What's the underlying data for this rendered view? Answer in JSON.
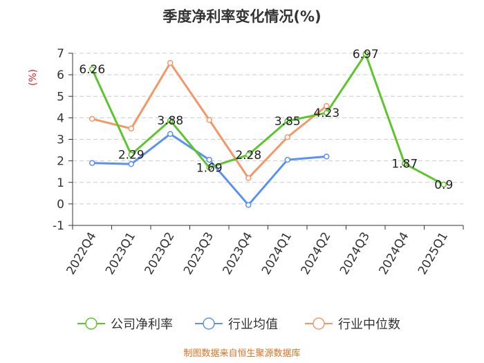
{
  "title": "季度净利率变化情况(%)",
  "source": "制图数据来自恒生聚源数据库",
  "colors": {
    "company": "#5cc52b",
    "industry_avg": "#5b8ff9",
    "industry_median": "#f69667",
    "source_text": "#e07020",
    "ylabel": "#e02020",
    "axis": "#333333",
    "grid": "#cccccc"
  },
  "chart_data": {
    "type": "line",
    "title": "季度净利率变化情况(%)",
    "ylabel": "(%)",
    "xlabel": "",
    "ylim": [
      -1,
      7
    ],
    "yticks": [
      -1,
      0,
      1,
      2,
      3,
      4,
      5,
      6,
      7
    ],
    "grid": true,
    "legend_position": "bottom",
    "categories": [
      "2022Q4",
      "2023Q1",
      "2023Q2",
      "2023Q3",
      "2023Q4",
      "2024Q1",
      "2024Q2",
      "2024Q3",
      "2024Q4",
      "2025Q1"
    ],
    "series": [
      {
        "name": "公司净利率",
        "color": "#5cc52b",
        "values": [
          6.26,
          2.29,
          3.88,
          1.69,
          2.28,
          3.85,
          4.23,
          6.97,
          1.87,
          0.9
        ],
        "labels": [
          "6.26",
          "2.29",
          "3.88",
          "1.69",
          "2.28",
          "3.85",
          "4.23",
          "6.97",
          "1.87",
          "0.9"
        ]
      },
      {
        "name": "行业均值",
        "color": "#5b8ff9",
        "values": [
          1.9,
          1.85,
          3.25,
          2.05,
          -0.05,
          2.05,
          2.2,
          null,
          null,
          null
        ]
      },
      {
        "name": "行业中位数",
        "color": "#f69667",
        "values": [
          3.95,
          3.5,
          6.55,
          3.9,
          1.2,
          3.1,
          4.55,
          null,
          null,
          null
        ]
      }
    ]
  }
}
